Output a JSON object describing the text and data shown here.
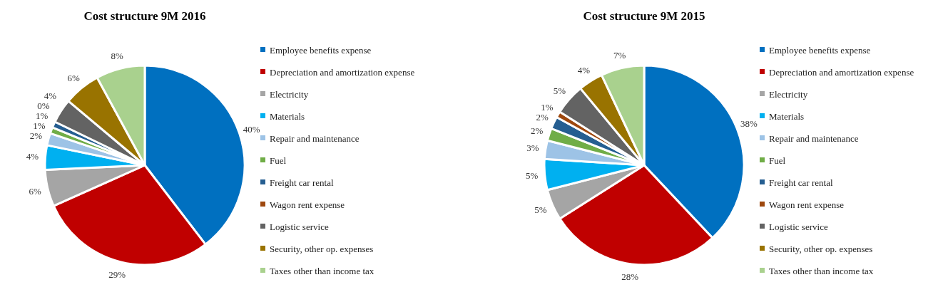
{
  "chart_data": [
    {
      "type": "pie",
      "title": "Cost structure 9M 2016",
      "legend": "right",
      "categories": [
        "Employee benefits expense",
        "Depreciation and amortization expense",
        "Electricity",
        "Materials",
        "Repair and maintenance",
        "Fuel",
        "Freight car rental",
        "Wagon rent expense",
        "Logistic service",
        "Security, other op. expenses",
        "Taxes other than income tax"
      ],
      "values": [
        40,
        29,
        6,
        4,
        2,
        1,
        1,
        0,
        4,
        6,
        8
      ],
      "value_labels": [
        "40%",
        "29%",
        "6%",
        "4%",
        "2%",
        "1%",
        "1%",
        "0%",
        "4%",
        "6%",
        "8%"
      ],
      "colors": [
        "#0070c0",
        "#c00000",
        "#a5a5a5",
        "#00b0f0",
        "#9dc3e6",
        "#70ad47",
        "#255e91",
        "#9e480e",
        "#636363",
        "#997300",
        "#a9d18e"
      ]
    },
    {
      "type": "pie",
      "title": "Cost structure 9M 2015",
      "legend": "right",
      "categories": [
        "Employee benefits expense",
        "Depreciation and amortization expense",
        "Electricity",
        "Materials",
        "Repair and maintenance",
        "Fuel",
        "Freight car rental",
        "Wagon rent expense",
        "Logistic service",
        "Security, other op. expenses",
        "Taxes other than income tax"
      ],
      "values": [
        38,
        28,
        5,
        5,
        3,
        2,
        2,
        1,
        5,
        4,
        7
      ],
      "value_labels": [
        "38%",
        "28%",
        "5%",
        "5%",
        "3%",
        "2%",
        "2%",
        "1%",
        "5%",
        "4%",
        "7%"
      ],
      "colors": [
        "#0070c0",
        "#c00000",
        "#a5a5a5",
        "#00b0f0",
        "#9dc3e6",
        "#70ad47",
        "#255e91",
        "#9e480e",
        "#636363",
        "#997300",
        "#a9d18e"
      ]
    }
  ]
}
